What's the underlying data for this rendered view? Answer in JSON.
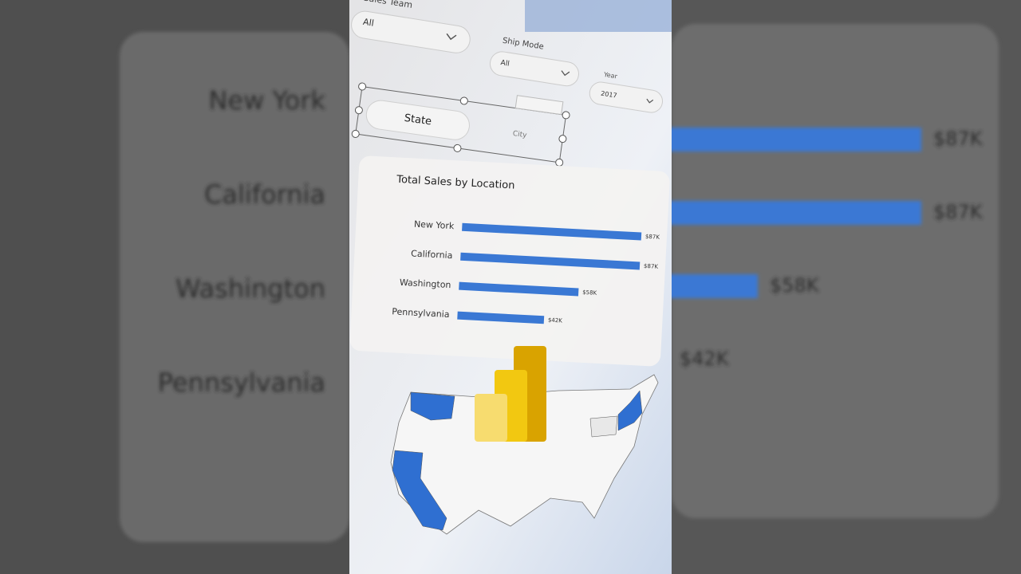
{
  "filters": [
    {
      "label": "Sales Team",
      "value": "All"
    },
    {
      "label": "Ship Mode",
      "value": "All"
    },
    {
      "label": "Year",
      "value": "2017"
    }
  ],
  "slicer_buttons": [
    "State",
    "City"
  ],
  "chart_data": {
    "type": "bar",
    "orientation": "horizontal",
    "title": "Total Sales by Location",
    "categories": [
      "New York",
      "California",
      "Washington",
      "Pennsylvania"
    ],
    "values": [
      87000,
      87000,
      58000,
      42000
    ],
    "value_labels": [
      "$87K",
      "$87K",
      "$58K",
      "$42K"
    ],
    "color": "#3a78d4"
  }
}
